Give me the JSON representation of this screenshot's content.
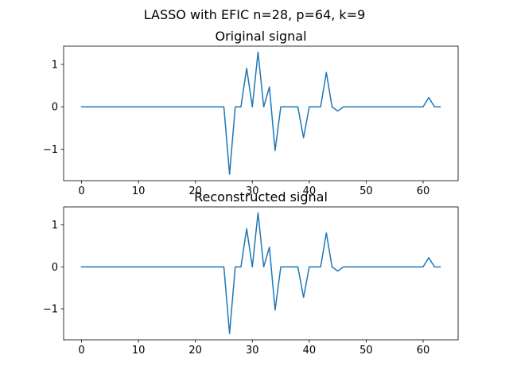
{
  "figure": {
    "suptitle": "LASSO with EFIC n=28, p=64, k=9"
  },
  "chart_data": [
    {
      "type": "line",
      "title": "Original signal",
      "xlabel": "",
      "ylabel": "",
      "xlim": [
        -3.15,
        66.15
      ],
      "ylim": [
        -1.74,
        1.43
      ],
      "xticks": [
        0,
        10,
        20,
        30,
        40,
        50,
        60
      ],
      "yticks": [
        -1,
        0,
        1
      ],
      "xtick_labels": [
        "0",
        "10",
        "20",
        "30",
        "40",
        "50",
        "60"
      ],
      "ytick_labels": [
        "−1",
        "0",
        "1"
      ],
      "grid": false,
      "color": "#1f77b4",
      "series": [
        {
          "values": [
            0,
            0,
            0,
            0,
            0,
            0,
            0,
            0,
            0,
            0,
            0,
            0,
            0,
            0,
            0,
            0,
            0,
            0,
            0,
            0,
            0,
            0,
            0,
            0,
            0,
            0,
            -1.59,
            0,
            0,
            0.91,
            0,
            1.29,
            0,
            0.47,
            -1.03,
            0,
            0,
            0,
            0,
            -0.73,
            0,
            0,
            0,
            0.81,
            0,
            -0.1,
            0,
            0,
            0,
            0,
            0,
            0,
            0,
            0,
            0,
            0,
            0,
            0,
            0,
            0,
            0,
            0.22,
            0,
            0
          ]
        }
      ]
    },
    {
      "type": "line",
      "title": "Reconstructed signal",
      "xlabel": "",
      "ylabel": "",
      "xlim": [
        -3.15,
        66.15
      ],
      "ylim": [
        -1.74,
        1.43
      ],
      "xticks": [
        0,
        10,
        20,
        30,
        40,
        50,
        60
      ],
      "yticks": [
        -1,
        0,
        1
      ],
      "xtick_labels": [
        "0",
        "10",
        "20",
        "30",
        "40",
        "50",
        "60"
      ],
      "ytick_labels": [
        "−1",
        "0",
        "1"
      ],
      "grid": false,
      "color": "#1f77b4",
      "series": [
        {
          "values": [
            0,
            0,
            0,
            0,
            0,
            0,
            0,
            0,
            0,
            0,
            0,
            0,
            0,
            0,
            0,
            0,
            0,
            0,
            0,
            0,
            0,
            0,
            0,
            0,
            0,
            0,
            -1.59,
            0,
            0,
            0.91,
            0,
            1.29,
            0,
            0.47,
            -1.03,
            0,
            0,
            0,
            0,
            -0.73,
            0,
            0,
            0,
            0.81,
            0,
            -0.1,
            0,
            0,
            0,
            0,
            0,
            0,
            0,
            0,
            0,
            0,
            0,
            0,
            0,
            0,
            0,
            0.22,
            0,
            0
          ]
        }
      ]
    }
  ]
}
